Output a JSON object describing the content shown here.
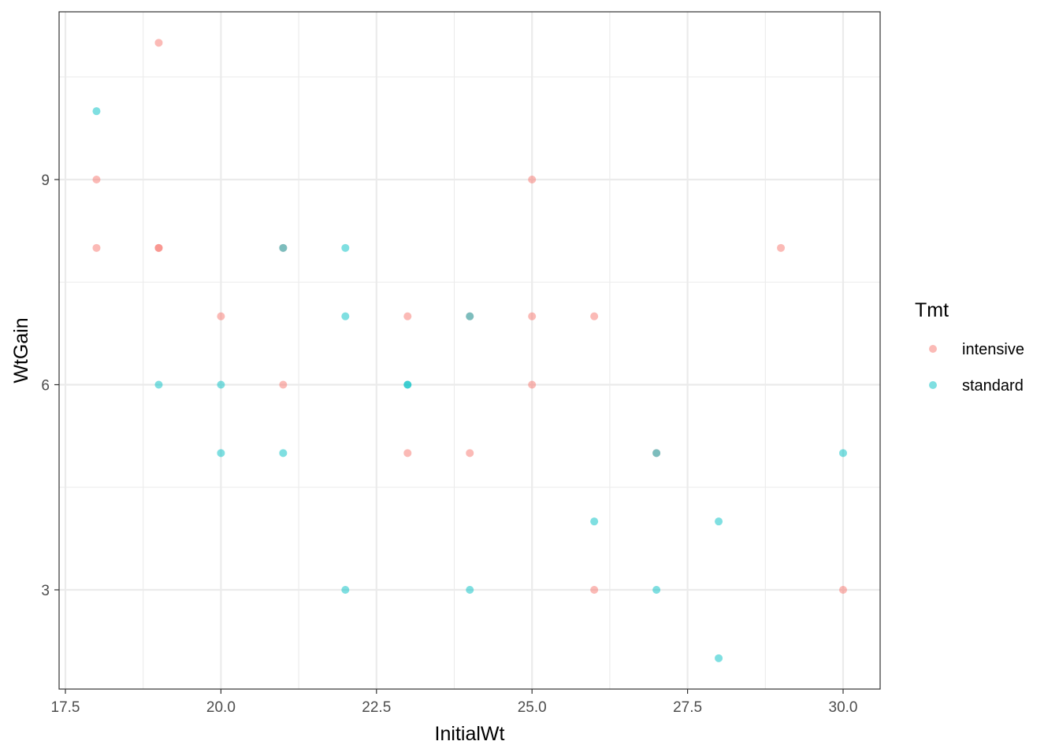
{
  "chart_data": {
    "type": "scatter",
    "xlabel": "InitialWt",
    "ylabel": "WtGain",
    "xlim": [
      17.5,
      30.0
    ],
    "ylim": [
      1.55,
      11.45
    ],
    "x_ticks": [
      17.5,
      20.0,
      22.5,
      25.0,
      27.5,
      30.0
    ],
    "x_tick_labels": [
      "17.5",
      "20.0",
      "22.5",
      "25.0",
      "27.5",
      "30.0"
    ],
    "y_ticks": [
      3,
      6,
      9
    ],
    "y_tick_labels": [
      "3",
      "6",
      "9"
    ],
    "grid": true,
    "legend": {
      "title": "Tmt",
      "placement": "right"
    },
    "series": [
      {
        "name": "intensive",
        "color": "#F8766D",
        "x": [
          18,
          18,
          19,
          19,
          19,
          20,
          21,
          21,
          23,
          23,
          24,
          24,
          25,
          25,
          25,
          26,
          26,
          27,
          29,
          30
        ],
        "y": [
          9,
          8,
          11,
          8,
          8,
          7,
          8,
          6,
          7,
          5,
          7,
          5,
          9,
          7,
          6,
          7,
          3,
          5,
          8,
          3
        ]
      },
      {
        "name": "standard",
        "color": "#00BFC4",
        "x": [
          18,
          19,
          20,
          20,
          21,
          21,
          22,
          22,
          22,
          23,
          23,
          24,
          24,
          26,
          27,
          27,
          28,
          28,
          30
        ],
        "y": [
          10,
          6,
          6,
          5,
          8,
          5,
          8,
          7,
          3,
          6,
          6,
          7,
          3,
          4,
          5,
          3,
          4,
          2,
          5
        ]
      }
    ]
  }
}
